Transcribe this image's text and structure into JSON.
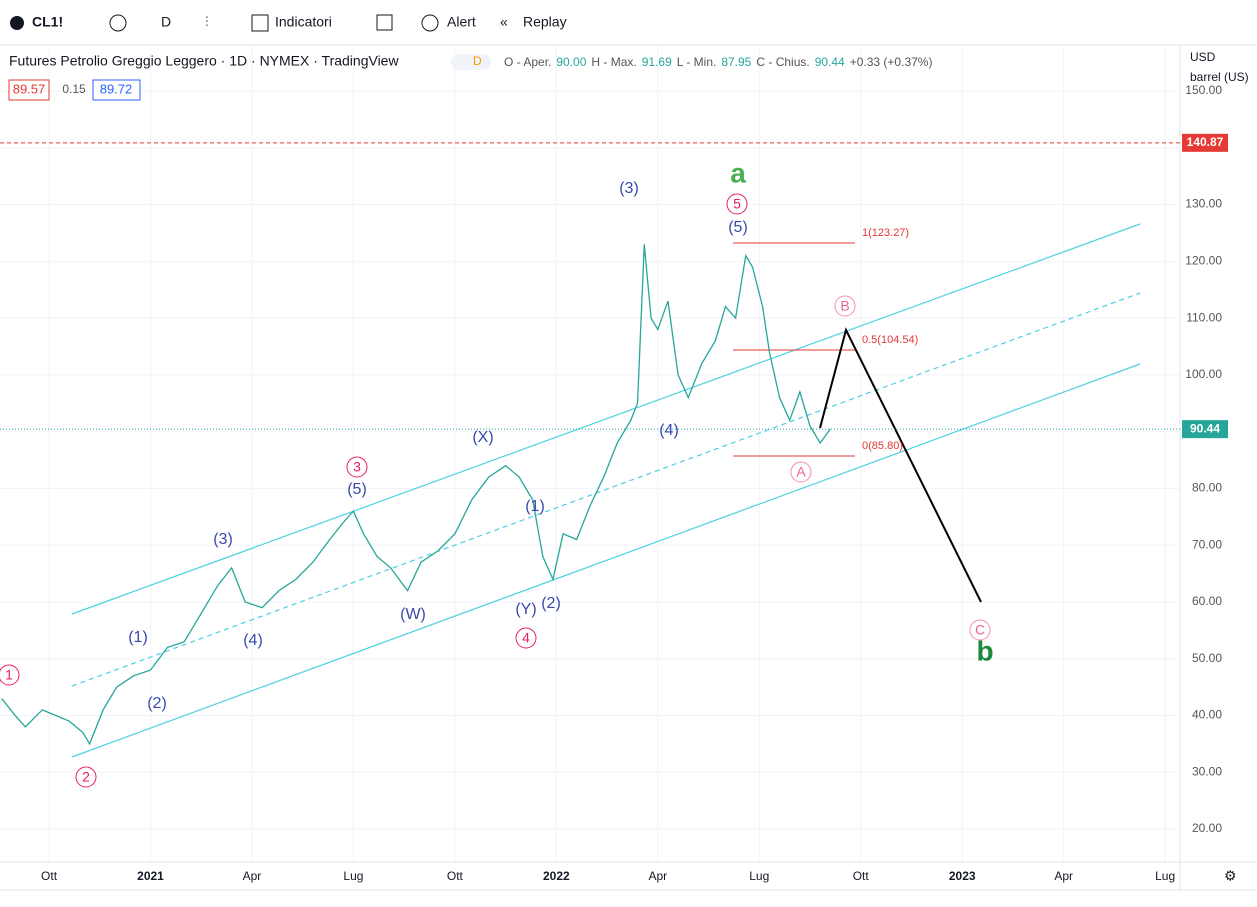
{
  "toolbar": {
    "symbol": "CL1!",
    "interval": "D",
    "indicators": "Indicatori",
    "alert": "Alert",
    "replay": "Replay"
  },
  "legend": {
    "title": "Futures Petrolio Greggio Leggero · 1D · NYMEX · TradingView",
    "badge": "D",
    "ohlc": [
      "O - Aper.",
      "90.00",
      "H - Max.",
      "91.69",
      "L - Min.",
      "87.95",
      "C - Chius.",
      "90.44",
      "+0.33 (+0.37%)"
    ]
  },
  "quote": {
    "bid": "89.57",
    "spread": "0.15",
    "ask": "89.72"
  },
  "scale": {
    "currency": "USD",
    "unit": "barrel (US)"
  },
  "chart_data": {
    "type": "line",
    "color": "#26a69a",
    "x": [
      7.6,
      8,
      8.3,
      8.8,
      9.2,
      9.6,
      10,
      10.2,
      10.6,
      11,
      11.5,
      12,
      12.5,
      13,
      13.5,
      14,
      14.4,
      14.8,
      15.3,
      15.8,
      16.3,
      16.8,
      17.3,
      17.7,
      18,
      18.3,
      18.7,
      19.1,
      19.6,
      20,
      20.5,
      21,
      21.5,
      22,
      22.5,
      22.9,
      23.3,
      23.6,
      23.9,
      24.2,
      24.6,
      25,
      25.4,
      25.8,
      26.2,
      26.4,
      26.6,
      26.8,
      27,
      27.3,
      27.6,
      27.9,
      28.3,
      28.7,
      29,
      29.3,
      29.6,
      29.8,
      30.1,
      30.3,
      30.6,
      30.9,
      31.2,
      31.5,
      31.8,
      32.1
    ],
    "values": [
      43,
      40,
      38,
      41,
      40,
      39,
      37,
      35,
      41,
      45,
      47,
      48,
      52,
      53,
      58,
      63,
      66,
      60,
      59,
      62,
      64,
      67,
      71,
      74,
      76,
      72,
      68,
      66,
      62,
      67,
      69,
      72,
      78,
      82,
      84,
      82,
      78,
      68,
      64,
      72,
      71,
      77,
      82,
      88,
      92,
      95,
      123,
      110,
      108,
      113,
      100,
      96,
      102,
      106,
      112,
      110,
      121,
      119,
      112,
      104,
      96,
      92,
      97,
      91,
      88,
      90.44
    ],
    "xlim": [
      7.55,
      42.44
    ],
    "ylim": [
      14.2,
      158.1
    ],
    "yticks": [
      {
        "value": 20,
        "label": "20.00"
      },
      {
        "value": 30,
        "label": "30.00"
      },
      {
        "value": 40,
        "label": "40.00"
      },
      {
        "value": 50,
        "label": "50.00"
      },
      {
        "value": 60,
        "label": "60.00"
      },
      {
        "value": 70,
        "label": "70.00"
      },
      {
        "value": 80,
        "label": "80.00"
      },
      {
        "value": 90,
        "label": "90.00"
      },
      {
        "value": 100,
        "label": "100.00"
      },
      {
        "value": 110,
        "label": "110.00"
      },
      {
        "value": 120,
        "label": "120.00"
      },
      {
        "value": 130,
        "label": "130.00"
      },
      {
        "value": 140,
        "label": "140.00"
      },
      {
        "value": 150,
        "label": "150.00"
      }
    ],
    "xticks": [
      {
        "value": 9,
        "label": "Ott"
      },
      {
        "value": 12,
        "label": "2021"
      },
      {
        "value": 15,
        "label": "Apr"
      },
      {
        "value": 18,
        "label": "Lug"
      },
      {
        "value": 21,
        "label": "Ott"
      },
      {
        "value": 24,
        "label": "2022"
      },
      {
        "value": 27,
        "label": "Apr"
      },
      {
        "value": 30,
        "label": "Lug"
      },
      {
        "value": 33,
        "label": "Ott"
      },
      {
        "value": 36,
        "label": "2023"
      },
      {
        "value": 39,
        "label": "Apr"
      },
      {
        "value": 42,
        "label": "Lug"
      }
    ],
    "levels": [
      {
        "value": 140.87,
        "color": "#e53935"
      },
      {
        "value": 90.44,
        "color": "#26a69a"
      }
    ],
    "fib_labels": [
      "1(123.27)",
      "0.5(104.54)",
      "0(85.80)"
    ],
    "annotations": [
      "1",
      "2",
      "3",
      "4",
      "5",
      "A",
      "B",
      "C",
      "(1)",
      "(2)",
      "(3)",
      "(4)",
      "(5)",
      "(W)",
      "(X)",
      "(Y)",
      "(2)",
      "(1)",
      "(3)",
      "(4)",
      "(5)",
      "a",
      "b"
    ]
  }
}
